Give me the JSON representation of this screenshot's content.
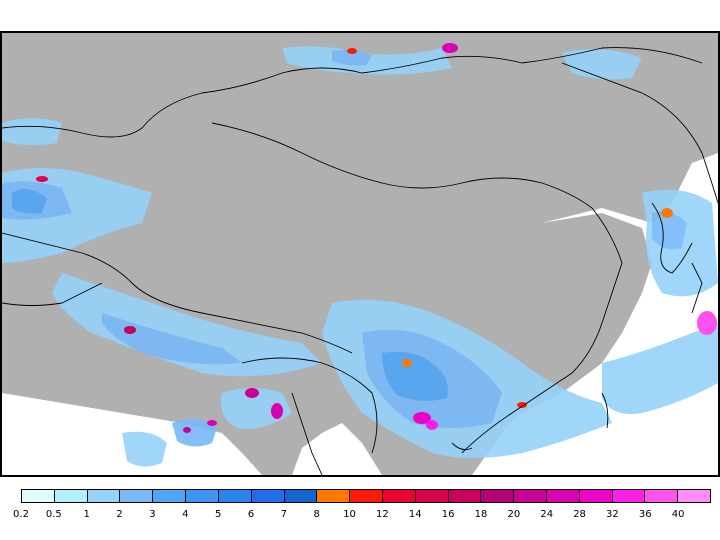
{
  "map": {
    "colors": {
      "land": "#b0b0b0",
      "water": "#ffffff",
      "border": "#000000"
    },
    "features": [
      "coastline",
      "country-borders",
      "province-borders",
      "precipitation-shading"
    ]
  },
  "legend": {
    "levels": [
      "0.2",
      "0.5",
      "1",
      "2",
      "3",
      "4",
      "5",
      "6",
      "7",
      "8",
      "10",
      "12",
      "14",
      "16",
      "18",
      "20",
      "24",
      "28",
      "32",
      "36",
      "40"
    ],
    "colors": [
      "#e0fffe",
      "#b4f0fa",
      "#96d2fa",
      "#78b9fa",
      "#50a5f5",
      "#3c96f5",
      "#2882f0",
      "#1e6eeb",
      "#1464d2",
      "#ff7800",
      "#ff1a00",
      "#f00032",
      "#dc0046",
      "#c8005a",
      "#b40078",
      "#c80096",
      "#dc00b4",
      "#f000c8",
      "#ff1ee6",
      "#ff50f0",
      "#ff8cfa"
    ]
  }
}
